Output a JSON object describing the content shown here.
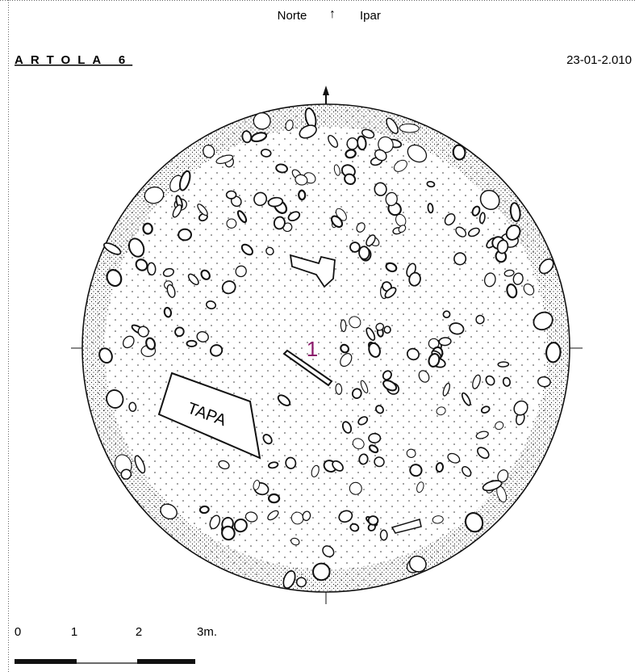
{
  "header": {
    "north": "Norte",
    "arrow": "↑",
    "ipar": "Ipar",
    "title": "ARTOLA 6",
    "date": "23-01-2.010"
  },
  "plan": {
    "slab_label": "TAPA",
    "stone_label": "1"
  },
  "scale": {
    "labels": [
      "0",
      "1",
      "2",
      "3m."
    ]
  }
}
